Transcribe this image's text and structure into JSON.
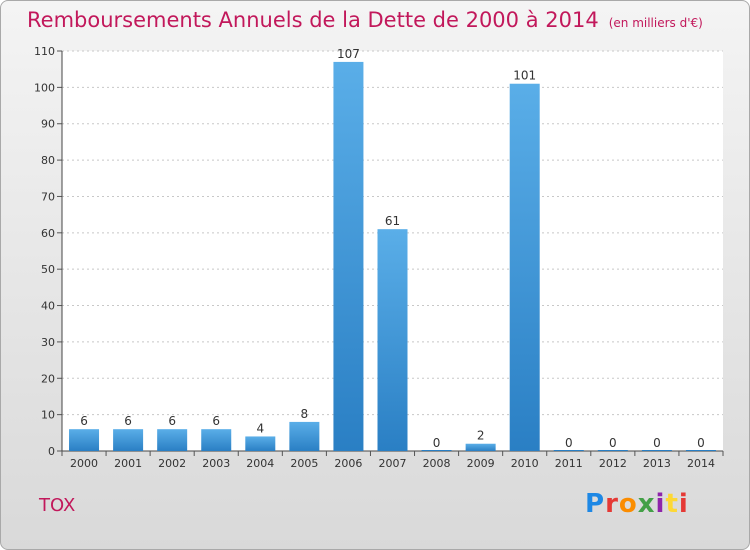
{
  "title": "Remboursements Annuels de la Dette de 2000 à 2014",
  "unit_note": "(en milliers d'€)",
  "commune": "TOX",
  "logo_text": "Proxiti",
  "logo_colors": [
    "#1e88e5",
    "#e53935",
    "#fb8c00",
    "#43a047",
    "#8e24aa",
    "#fdd835",
    "#e53935"
  ],
  "colors": {
    "title": "#c2185b",
    "bar_top": "#5aaee8",
    "bar_bottom": "#2a7fc4",
    "label": "#333333",
    "grid": "#c8c8c8"
  },
  "chart_data": {
    "type": "bar",
    "title": "Remboursements Annuels de la Dette de 2000 à 2014",
    "ylabel": "",
    "xlabel": "",
    "categories": [
      "2000",
      "2001",
      "2002",
      "2003",
      "2004",
      "2005",
      "2006",
      "2007",
      "2008",
      "2009",
      "2010",
      "2011",
      "2012",
      "2013",
      "2014"
    ],
    "values": [
      6,
      6,
      6,
      6,
      4,
      8,
      107,
      61,
      0,
      2,
      101,
      0,
      0,
      0,
      0
    ],
    "ylim": [
      0,
      110
    ],
    "yticks": [
      0,
      10,
      20,
      30,
      40,
      50,
      60,
      70,
      80,
      90,
      100,
      110
    ],
    "grid": true
  }
}
